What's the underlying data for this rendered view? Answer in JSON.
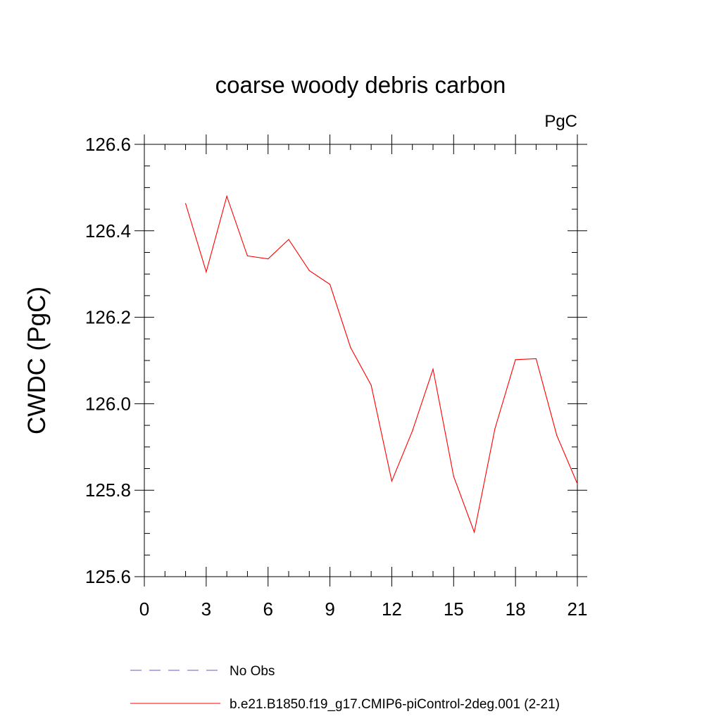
{
  "chart_data": {
    "type": "line",
    "title": "coarse woody debris carbon",
    "units_label": "PgC",
    "ylabel": "CWDC  (PgC)",
    "xlabel": "",
    "xlim": [
      0,
      21
    ],
    "ylim": [
      125.6,
      126.6
    ],
    "x_ticks": [
      0,
      3,
      6,
      9,
      12,
      15,
      18,
      21
    ],
    "x_tick_labels": [
      "0",
      "3",
      "6",
      "9",
      "12",
      "15",
      "18",
      "21"
    ],
    "y_ticks": [
      125.6,
      125.8,
      126.0,
      126.2,
      126.4,
      126.6
    ],
    "y_tick_labels": [
      "125.6",
      "125.8",
      "126.0",
      "126.2",
      "126.4",
      "126.6"
    ],
    "grid": false,
    "legend_placement": "bottom",
    "series": [
      {
        "name": "b.e21.B1850.f19_g17.CMIP6-piControl-2deg.001 (2-21)",
        "color": "#ff0000",
        "line_style": "solid",
        "x": [
          2,
          3,
          4,
          5,
          6,
          7,
          8,
          9,
          10,
          11,
          12,
          13,
          14,
          15,
          16,
          17,
          18,
          19,
          20,
          21
        ],
        "y": [
          126.463,
          126.305,
          126.48,
          126.342,
          126.335,
          126.38,
          126.308,
          126.276,
          126.13,
          126.043,
          125.821,
          125.937,
          126.08,
          125.832,
          125.703,
          125.942,
          126.102,
          126.104,
          125.927,
          125.815
        ]
      }
    ],
    "legend": [
      {
        "label": "No Obs",
        "color": "#6a5acd",
        "line_style": "dashed"
      },
      {
        "label": "b.e21.B1850.f19_g17.CMIP6-piControl-2deg.001 (2-21)",
        "color": "#ff0000",
        "line_style": "solid"
      }
    ]
  }
}
